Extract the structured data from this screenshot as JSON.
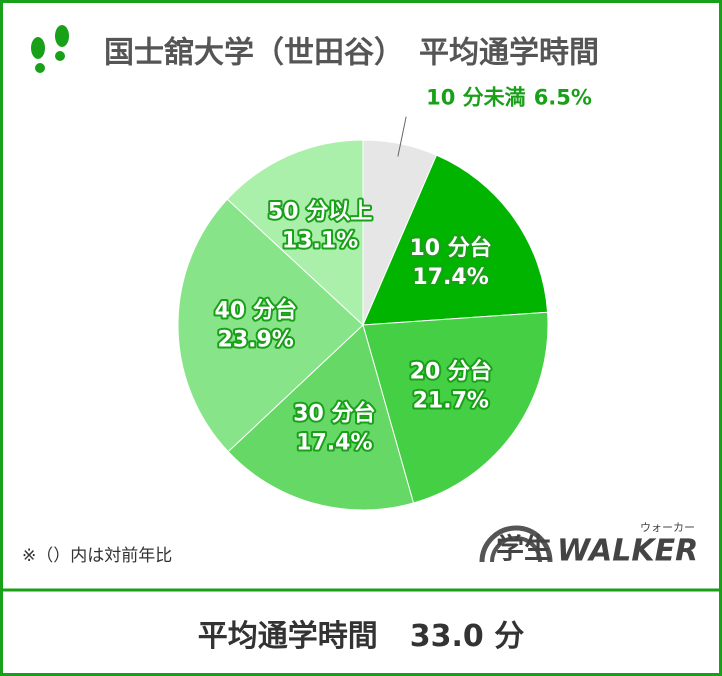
{
  "chart_data": {
    "type": "pie",
    "title": "国士舘大学（世田谷）　平均通学時間",
    "categories": [
      "10 分未満",
      "10 分台",
      "20 分台",
      "30 分台",
      "40 分台",
      "50 分以上"
    ],
    "values": [
      6.5,
      17.4,
      21.7,
      17.4,
      23.9,
      13.1
    ],
    "value_labels": [
      "6.5%",
      "17.4%",
      "21.7%",
      "17.4%",
      "23.9%",
      "13.1%"
    ],
    "colors": [
      "#e6e6e6",
      "#00b400",
      "#44cf44",
      "#66d866",
      "#88e488",
      "#aaf0aa"
    ],
    "note": "※（）内は対前年比"
  },
  "brand": {
    "prefix": "学生",
    "name": "WALKER",
    "kana": "ウォーカー"
  },
  "summary": {
    "label": "平均通学時間",
    "value": "33.0 分"
  }
}
